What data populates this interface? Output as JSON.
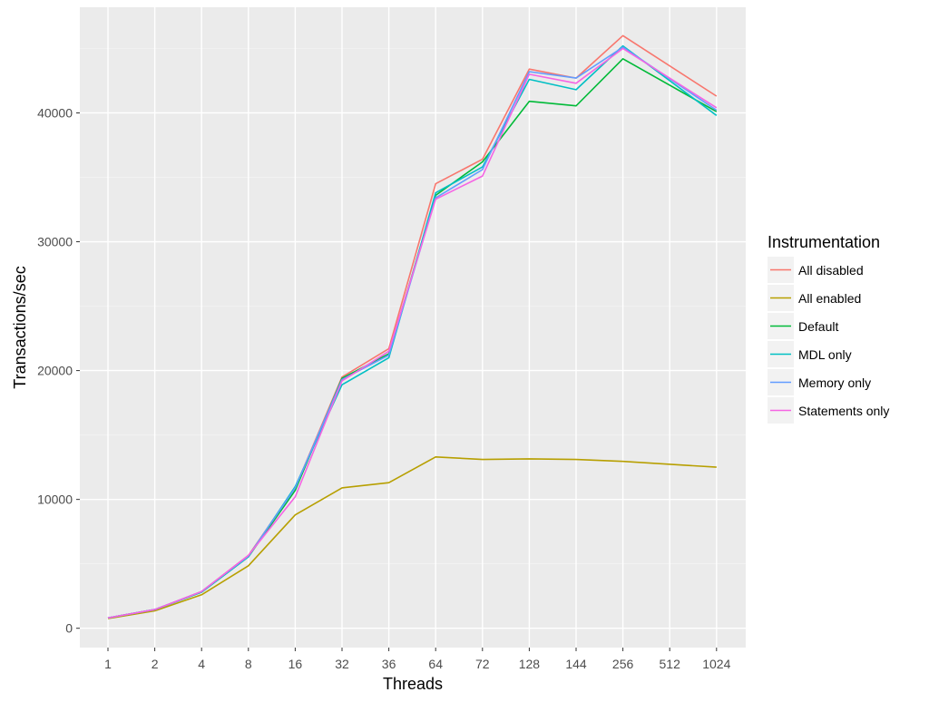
{
  "chart_data": {
    "type": "line",
    "xlabel": "Threads",
    "ylabel": "Transactions/sec",
    "categories": [
      "1",
      "2",
      "4",
      "8",
      "16",
      "32",
      "36",
      "64",
      "72",
      "128",
      "144",
      "256",
      "512",
      "1024"
    ],
    "yticks": [
      0,
      10000,
      20000,
      30000,
      40000
    ],
    "ytick_labels": [
      "0",
      "10000",
      "20000",
      "30000",
      "40000"
    ],
    "ylim": [
      -1500,
      48200
    ],
    "grid": true,
    "background": "#ebebeb",
    "legend": {
      "title": "Instrumentation",
      "position": "right"
    },
    "series": [
      {
        "name": "All disabled",
        "color": "#f8766d",
        "values": [
          800,
          1450,
          2850,
          5650,
          10900,
          19500,
          21700,
          34500,
          36400,
          43400,
          42700,
          46000,
          null,
          41300
        ]
      },
      {
        "name": "All enabled",
        "color": "#b79f00",
        "values": [
          750,
          1350,
          2600,
          4850,
          8800,
          10900,
          11300,
          13300,
          13100,
          13150,
          13100,
          12950,
          null,
          12500
        ]
      },
      {
        "name": "Default",
        "color": "#00ba38",
        "values": [
          800,
          1450,
          2800,
          5550,
          10700,
          19400,
          21300,
          33600,
          36200,
          40900,
          40550,
          44200,
          null,
          40100
        ]
      },
      {
        "name": "MDL only",
        "color": "#00bfc4",
        "values": [
          800,
          1450,
          2800,
          5550,
          11000,
          18900,
          21000,
          33800,
          35800,
          42600,
          41800,
          45200,
          null,
          39800
        ]
      },
      {
        "name": "Memory only",
        "color": "#619cff",
        "values": [
          800,
          1450,
          2850,
          5600,
          10900,
          19300,
          21200,
          33400,
          35600,
          43200,
          42700,
          45100,
          null,
          40200
        ]
      },
      {
        "name": "Statements only",
        "color": "#f564e3",
        "values": [
          800,
          1450,
          2850,
          5650,
          10200,
          19200,
          21500,
          33300,
          35100,
          43000,
          42300,
          45000,
          null,
          40400
        ]
      }
    ]
  }
}
